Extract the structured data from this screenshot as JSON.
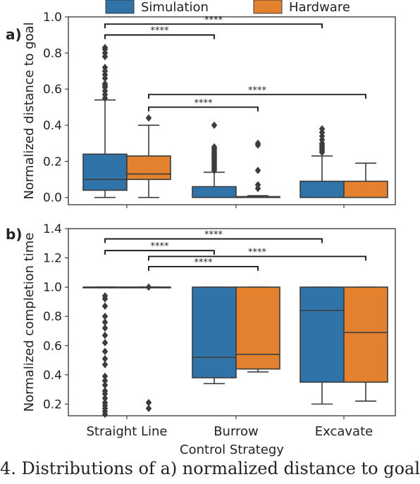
{
  "legend": {
    "placement": "top-center",
    "items": [
      {
        "name": "Simulation",
        "color": "#2f73a9"
      },
      {
        "name": "Hardware",
        "color": "#e4812f"
      }
    ]
  },
  "caption": "4. Distributions of a) normalized distance to goal",
  "chart_data": [
    {
      "panel_label": "a)",
      "type": "box",
      "ylabel": "Normalized distance to goal",
      "xlabel": "",
      "ylim": [
        -0.04,
        1.0
      ],
      "yticks": [
        "0.0",
        "0.2",
        "0.4",
        "0.6",
        "0.8",
        "1.0"
      ],
      "categories": [],
      "series": [
        {
          "name": "Simulation",
          "boxes": [
            {
              "q1": 0.04,
              "median": 0.1,
              "q3": 0.24,
              "whisker_low": 0.0,
              "whisker_high": 0.54,
              "outliers": [
                0.55,
                0.57,
                0.59,
                0.61,
                0.62,
                0.63,
                0.66,
                0.68,
                0.7,
                0.72,
                0.78,
                0.8,
                0.82,
                0.83
              ]
            },
            {
              "q1": 0.0,
              "median": 0.0,
              "q3": 0.06,
              "whisker_low": 0.0,
              "whisker_high": 0.14,
              "outliers": [
                0.15,
                0.16,
                0.17,
                0.18,
                0.19,
                0.2,
                0.21,
                0.22,
                0.23,
                0.24,
                0.25,
                0.26,
                0.27,
                0.28,
                0.4
              ]
            },
            {
              "q1": 0.0,
              "median": 0.0,
              "q3": 0.09,
              "whisker_low": 0.0,
              "whisker_high": 0.23,
              "outliers": [
                0.25,
                0.26,
                0.27,
                0.28,
                0.29,
                0.3,
                0.32,
                0.34,
                0.36,
                0.38
              ]
            }
          ]
        },
        {
          "name": "Hardware",
          "boxes": [
            {
              "q1": 0.1,
              "median": 0.13,
              "q3": 0.23,
              "whisker_low": 0.0,
              "whisker_high": 0.4,
              "outliers": [
                0.44
              ]
            },
            {
              "q1": 0.0,
              "median": 0.0,
              "q3": 0.005,
              "whisker_low": 0.0,
              "whisker_high": 0.01,
              "outliers": [
                0.05,
                0.07,
                0.15,
                0.29,
                0.3
              ]
            },
            {
              "q1": 0.0,
              "median": 0.0,
              "q3": 0.09,
              "whisker_low": 0.0,
              "whisker_high": 0.19,
              "outliers": []
            }
          ]
        }
      ],
      "annotations": [
        {
          "text": "****",
          "from": [
            0,
            0
          ],
          "to": [
            1,
            0
          ],
          "y": 0.9
        },
        {
          "text": "****",
          "from": [
            0,
            0
          ],
          "to": [
            2,
            0
          ],
          "y": 0.96
        },
        {
          "text": "****",
          "from": [
            0,
            1
          ],
          "to": [
            1,
            1
          ],
          "y": 0.5
        },
        {
          "text": "****",
          "from": [
            0,
            1
          ],
          "to": [
            2,
            1
          ],
          "y": 0.57
        }
      ]
    },
    {
      "panel_label": "b)",
      "type": "box",
      "ylabel": "Normalized completion time",
      "xlabel": "Control Strategy",
      "ylim": [
        0.12,
        1.4
      ],
      "yticks": [
        "0.2",
        "0.4",
        "0.6",
        "0.8",
        "1.0",
        "1.2",
        "1.4"
      ],
      "categories": [
        "Straight Line",
        "Burrow",
        "Excavate"
      ],
      "series": [
        {
          "name": "Simulation",
          "boxes": [
            {
              "q1": 1.0,
              "median": 1.0,
              "q3": 1.0,
              "whisker_low": 1.0,
              "whisker_high": 1.0,
              "outliers": [
                0.13,
                0.15,
                0.17,
                0.19,
                0.21,
                0.24,
                0.27,
                0.29,
                0.33,
                0.36,
                0.39,
                0.47,
                0.51,
                0.56,
                0.62,
                0.67,
                0.72,
                0.76,
                0.8,
                0.87,
                0.92,
                0.94
              ]
            },
            {
              "q1": 0.38,
              "median": 0.52,
              "q3": 1.0,
              "whisker_low": 0.34,
              "whisker_high": 1.0,
              "outliers": []
            },
            {
              "q1": 0.35,
              "median": 0.84,
              "q3": 1.0,
              "whisker_low": 0.2,
              "whisker_high": 1.0,
              "outliers": []
            }
          ]
        },
        {
          "name": "Hardware",
          "boxes": [
            {
              "q1": 1.0,
              "median": 1.0,
              "q3": 1.0,
              "whisker_low": 1.0,
              "whisker_high": 1.0,
              "outliers": [
                0.17,
                0.21,
                1.0
              ]
            },
            {
              "q1": 0.44,
              "median": 0.54,
              "q3": 1.0,
              "whisker_low": 0.42,
              "whisker_high": 1.0,
              "outliers": []
            },
            {
              "q1": 0.35,
              "median": 0.69,
              "q3": 1.0,
              "whisker_low": 0.22,
              "whisker_high": 1.0,
              "outliers": []
            }
          ]
        }
      ],
      "annotations": [
        {
          "text": "****",
          "from": [
            0,
            0
          ],
          "to": [
            1,
            0
          ],
          "y": 1.25
        },
        {
          "text": "****",
          "from": [
            0,
            0
          ],
          "to": [
            2,
            0
          ],
          "y": 1.33
        },
        {
          "text": "****",
          "from": [
            0,
            1
          ],
          "to": [
            1,
            1
          ],
          "y": 1.14
        },
        {
          "text": "****",
          "from": [
            0,
            1
          ],
          "to": [
            2,
            1
          ],
          "y": 1.21
        }
      ]
    }
  ]
}
